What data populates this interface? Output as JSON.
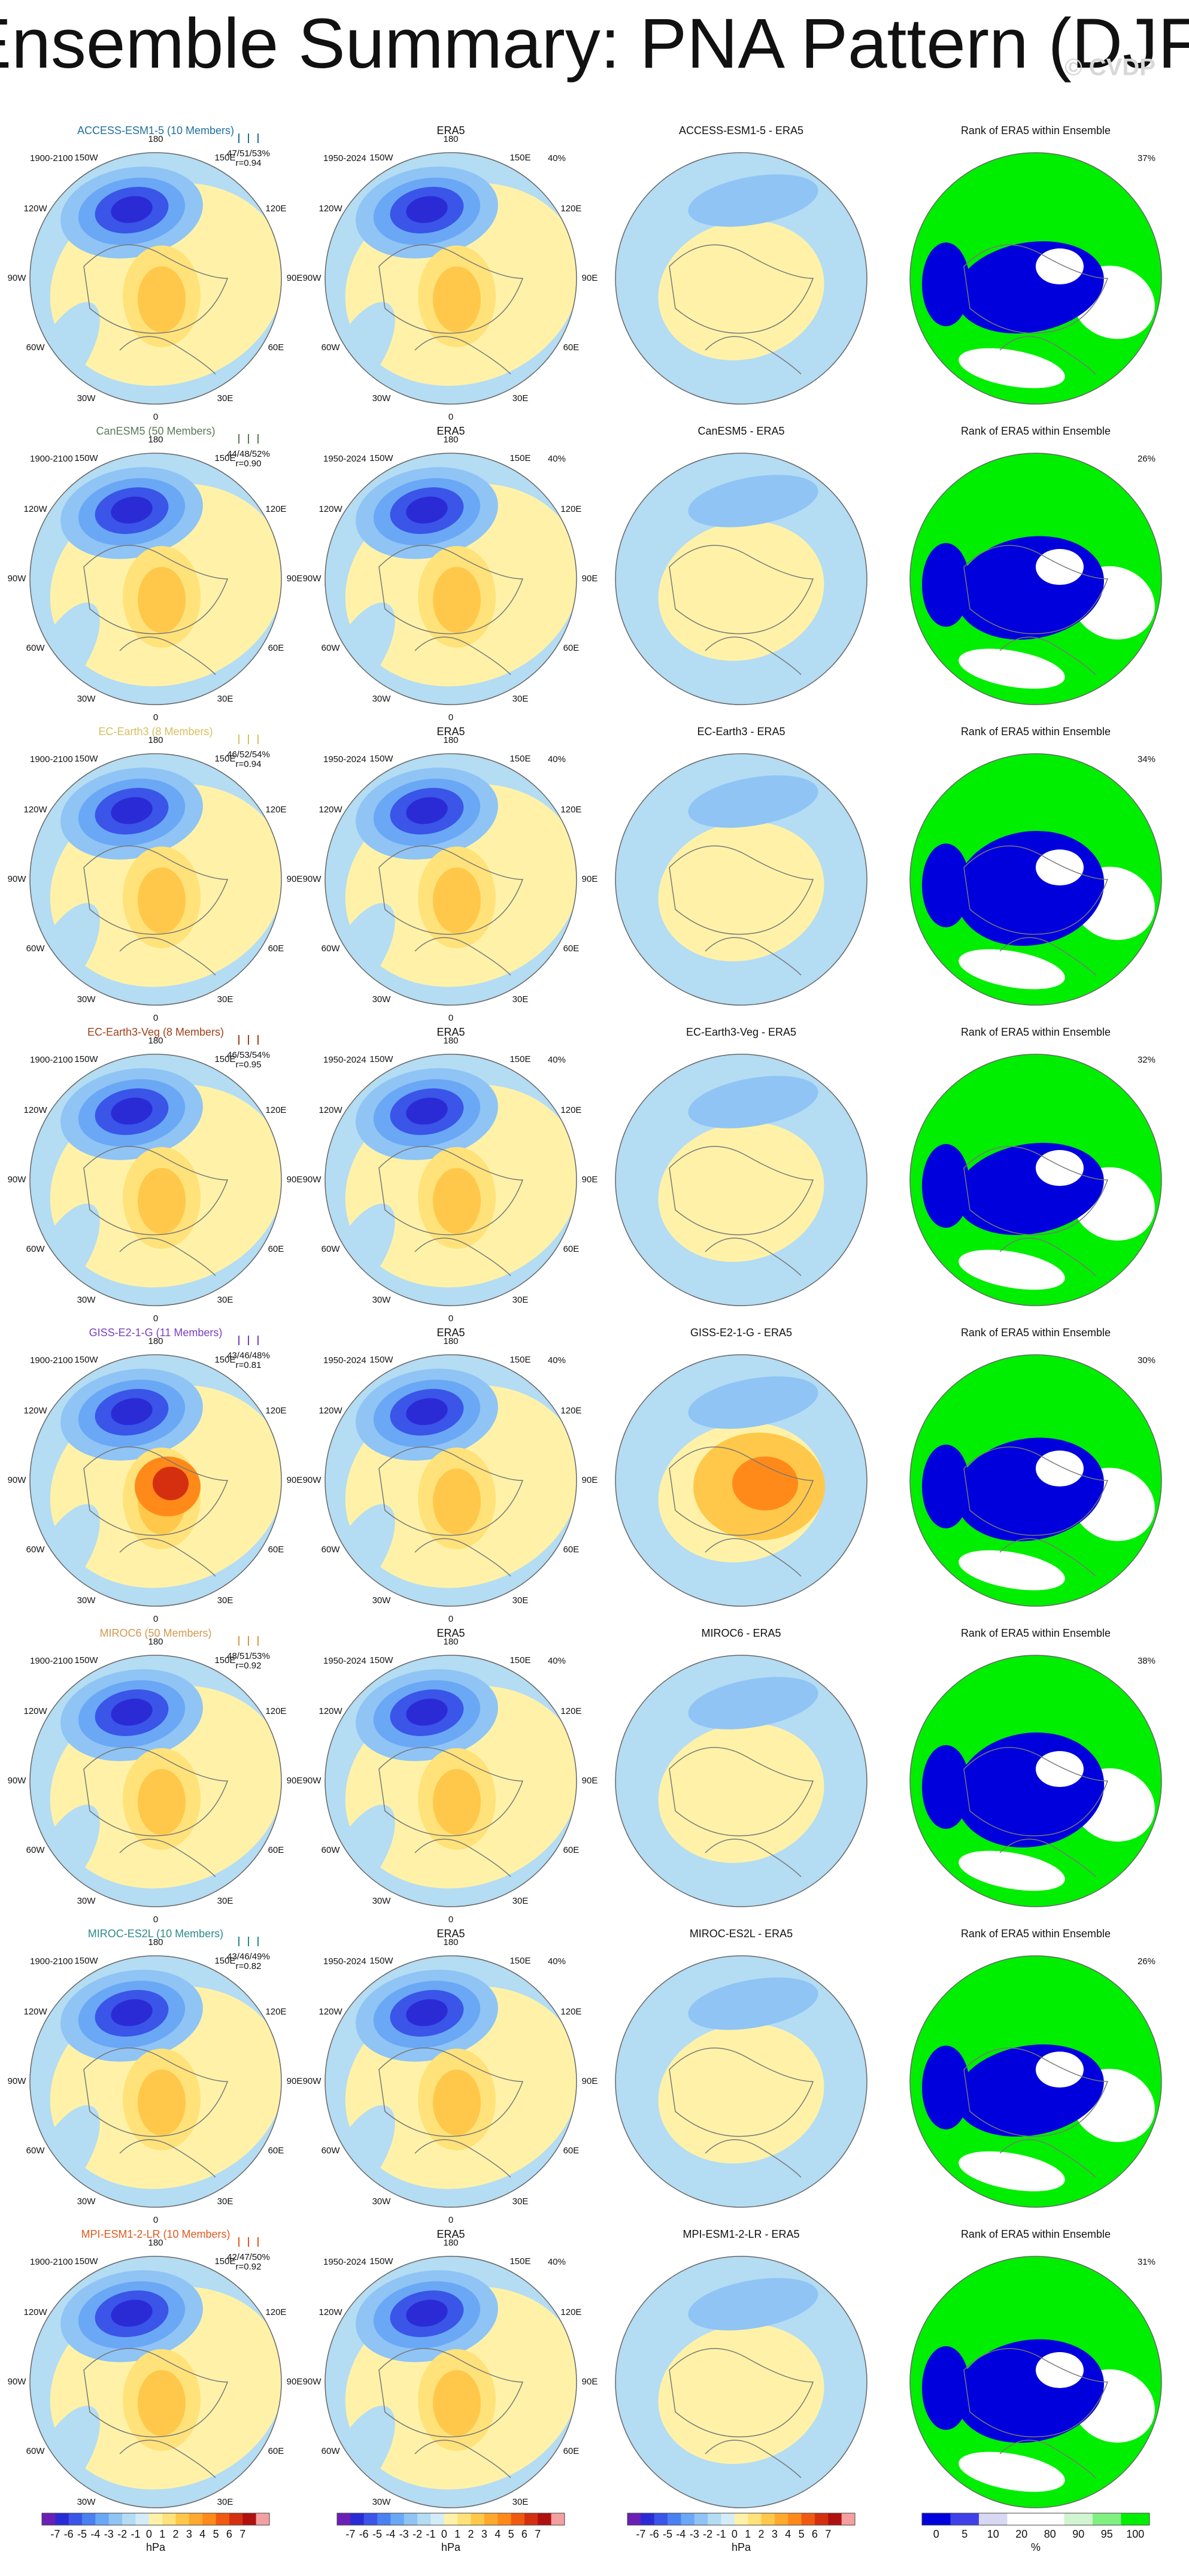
{
  "title": "Ensemble Summary: PNA Pattern (DJF)",
  "watermark": "© CVDP",
  "rows": [
    {
      "model": "ACCESS-ESM1-5 (10 Members)",
      "color": "#1f6fa0",
      "model_period": "1900-2100",
      "stats": "47/51/53%",
      "r": "r=0.94",
      "era5_title": "ERA5",
      "era5_period": "1950-2024",
      "era5_pct": "40%",
      "diff_title": "ACCESS-ESM1-5 - ERA5",
      "rank_title": "Rank of ERA5 within Ensemble",
      "rank_pct": "37%"
    },
    {
      "model": "CanESM5 (50 Members)",
      "color": "#5a7a5a",
      "model_period": "1900-2100",
      "stats": "44/48/52%",
      "r": "r=0.90",
      "era5_title": "ERA5",
      "era5_period": "1950-2024",
      "era5_pct": "40%",
      "diff_title": "CanESM5 - ERA5",
      "rank_title": "Rank of ERA5 within Ensemble",
      "rank_pct": "26%"
    },
    {
      "model": "EC-Earth3 (8 Members)",
      "color": "#d6c060",
      "model_period": "1900-2100",
      "stats": "46/52/54%",
      "r": "r=0.94",
      "era5_title": "ERA5",
      "era5_period": "1950-2024",
      "era5_pct": "40%",
      "diff_title": "EC-Earth3 - ERA5",
      "rank_title": "Rank of ERA5 within Ensemble",
      "rank_pct": "34%"
    },
    {
      "model": "EC-Earth3-Veg (8 Members)",
      "color": "#a0401a",
      "model_period": "1900-2100",
      "stats": "46/53/54%",
      "r": "r=0.95",
      "era5_title": "ERA5",
      "era5_period": "1950-2024",
      "era5_pct": "40%",
      "diff_title": "EC-Earth3-Veg - ERA5",
      "rank_title": "Rank of ERA5 within Ensemble",
      "rank_pct": "32%"
    },
    {
      "model": "GISS-E2-1-G (11 Members)",
      "color": "#7a40c0",
      "model_period": "1900-2100",
      "stats": "43/46/48%",
      "r": "r=0.81",
      "era5_title": "ERA5",
      "era5_period": "1950-2024",
      "era5_pct": "40%",
      "diff_title": "GISS-E2-1-G - ERA5",
      "rank_title": "Rank of ERA5 within Ensemble",
      "rank_pct": "30%"
    },
    {
      "model": "MIROC6 (50 Members)",
      "color": "#d09a50",
      "model_period": "1900-2100",
      "stats": "48/51/53%",
      "r": "r=0.92",
      "era5_title": "ERA5",
      "era5_period": "1950-2024",
      "era5_pct": "40%",
      "diff_title": "MIROC6 - ERA5",
      "rank_title": "Rank of ERA5 within Ensemble",
      "rank_pct": "38%"
    },
    {
      "model": "MIROC-ES2L (10 Members)",
      "color": "#2a8a8a",
      "model_period": "1900-2100",
      "stats": "43/46/49%",
      "r": "r=0.82",
      "era5_title": "ERA5",
      "era5_period": "1950-2024",
      "era5_pct": "40%",
      "diff_title": "MIROC-ES2L - ERA5",
      "rank_title": "Rank of ERA5 within Ensemble",
      "rank_pct": "26%"
    },
    {
      "model": "MPI-ESM1-2-LR (10 Members)",
      "color": "#e05a20",
      "model_period": "1900-2100",
      "stats": "42/47/50%",
      "r": "r=0.92",
      "era5_title": "ERA5",
      "era5_period": "1950-2024",
      "era5_pct": "40%",
      "diff_title": "MPI-ESM1-2-LR - ERA5",
      "rank_title": "Rank of ERA5 within Ensemble",
      "rank_pct": "31%"
    }
  ],
  "lon_labels": [
    "180",
    "150E",
    "120E",
    "90E",
    "60E",
    "30E",
    "0",
    "30W",
    "60W",
    "90W",
    "120W",
    "150W"
  ],
  "colorbar_hpa": {
    "ticks": [
      -7,
      -6,
      -5,
      -4,
      -3,
      -2,
      -1,
      0,
      1,
      2,
      3,
      4,
      5,
      6,
      7
    ],
    "unit": "hPa",
    "colors": [
      "#6a1fb5",
      "#2b2bd6",
      "#3a55e8",
      "#4a80f0",
      "#6aa8f5",
      "#8fc4f5",
      "#b4dcf3",
      "#d4ecf7",
      "#fff2a8",
      "#ffe27a",
      "#ffc84a",
      "#ffa92e",
      "#ff8a1a",
      "#f05a10",
      "#d43010",
      "#b01010",
      "#f4a0a0"
    ]
  },
  "colorbar_rank": {
    "ticks": [
      0,
      5,
      10,
      20,
      80,
      90,
      95,
      100
    ],
    "unit": "%",
    "colors": [
      "#0000dd",
      "#4040e8",
      "#d8d8f4",
      "#ffffff",
      "#ffffff",
      "#d0f5d0",
      "#80f080",
      "#00ee00"
    ]
  }
}
